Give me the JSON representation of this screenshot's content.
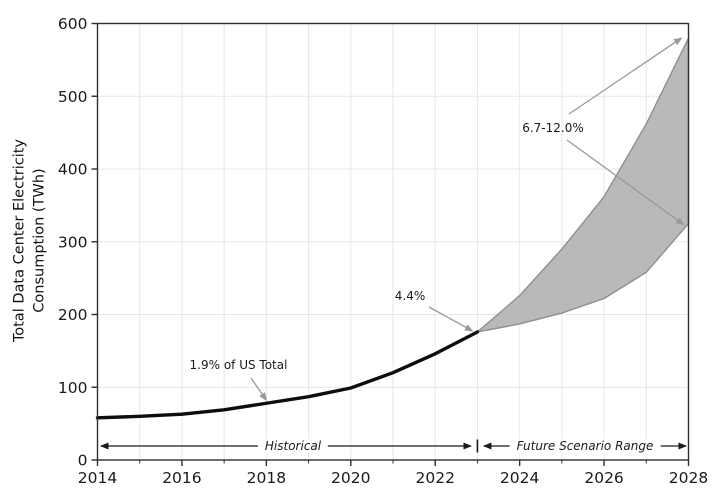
{
  "chart_data": {
    "type": "line",
    "title": "",
    "xlabel": "",
    "ylabel": "Total Data Center Electricity\nConsumption (TWh)",
    "xlim": [
      2014,
      2028
    ],
    "ylim": [
      0,
      600
    ],
    "xticks": [
      2014,
      2016,
      2018,
      2020,
      2022,
      2024,
      2026,
      2028
    ],
    "x_minor_ticks": [
      2015,
      2017,
      2019,
      2021,
      2023,
      2025,
      2027
    ],
    "yticks": [
      0,
      100,
      200,
      300,
      400,
      500,
      600
    ],
    "grid": {
      "vertical_every_year": true,
      "horizontal_major": true
    },
    "legend": "none",
    "series": [
      {
        "name": "Historical",
        "type": "line",
        "x": [
          2014,
          2015,
          2016,
          2017,
          2018,
          2019,
          2020,
          2021,
          2022,
          2023
        ],
        "y": [
          58,
          60,
          63,
          69,
          78,
          87,
          99,
          120,
          146,
          176
        ]
      },
      {
        "name": "Future Scenario Range",
        "type": "band",
        "x": [
          2023,
          2024,
          2025,
          2026,
          2027,
          2028
        ],
        "upper": [
          176,
          226,
          290,
          362,
          462,
          580
        ],
        "lower": [
          176,
          187,
          202,
          222,
          258,
          325
        ]
      }
    ],
    "annotations": [
      {
        "text": "1.9% of US Total",
        "target": {
          "x": 2018,
          "y": 78
        }
      },
      {
        "text": "4.4%",
        "target": {
          "x": 2023,
          "y": 176
        }
      },
      {
        "text": "6.7-12.0%",
        "targets": [
          {
            "x": 2028,
            "y": 580
          },
          {
            "x": 2028,
            "y": 325
          }
        ]
      }
    ],
    "range_labels": [
      {
        "text": "Historical",
        "from": 2014,
        "to": 2023
      },
      {
        "text": "Future Scenario Range",
        "from": 2023,
        "to": 2028
      }
    ],
    "colors": {
      "line": "#0d0d0d",
      "band_fill": "#b9b9b9",
      "band_edge": "#8f8f8f",
      "grid": "#e7e7e7",
      "spine": "#2f2f2f",
      "tick_text": "#1a1a1a",
      "callout_arrow": "#999999",
      "range_arrow": "#1a1a1a"
    }
  }
}
